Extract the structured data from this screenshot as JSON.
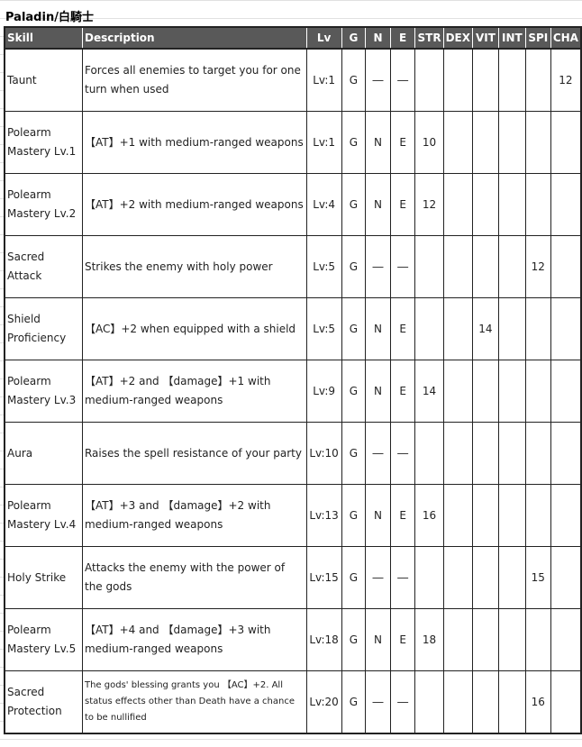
{
  "title": "Paladin/白騎士",
  "columns": [
    "Skill",
    "Description",
    "Lv",
    "G",
    "N",
    "E",
    "STR",
    "DEX",
    "VIT",
    "INT",
    "SPI",
    "CHA"
  ],
  "rows": [
    {
      "skill": "Taunt",
      "desc": "Forces all enemies to target you for one turn when used",
      "lv": "Lv:1",
      "g": "G",
      "n": "―",
      "e": "―",
      "stats": {
        "CHA": "12"
      }
    },
    {
      "skill": "Polearm Mastery Lv.1",
      "desc": "【AT】+1 with medium-ranged weapons",
      "lv": "Lv:1",
      "g": "G",
      "n": "N",
      "e": "E",
      "stats": {
        "STR": "10"
      }
    },
    {
      "skill": "Polearm Mastery Lv.2",
      "desc": "【AT】+2 with medium-ranged weapons",
      "lv": "Lv:4",
      "g": "G",
      "n": "N",
      "e": "E",
      "stats": {
        "STR": "12"
      }
    },
    {
      "skill": "Sacred Attack",
      "desc": "Strikes the enemy with holy power",
      "lv": "Lv:5",
      "g": "G",
      "n": "―",
      "e": "―",
      "stats": {
        "SPI": "12"
      }
    },
    {
      "skill": "Shield Proficiency",
      "desc": "【AC】+2 when equipped with a shield",
      "lv": "Lv:5",
      "g": "G",
      "n": "N",
      "e": "E",
      "stats": {
        "VIT": "14"
      }
    },
    {
      "skill": "Polearm Mastery Lv.3",
      "desc": "【AT】+2 and 【damage】+1 with medium-ranged weapons",
      "lv": "Lv:9",
      "g": "G",
      "n": "N",
      "e": "E",
      "stats": {
        "STR": "14"
      }
    },
    {
      "skill": "Aura",
      "desc": "Raises the spell resistance of your party",
      "lv": "Lv:10",
      "g": "G",
      "n": "―",
      "e": "―",
      "stats": {}
    },
    {
      "skill": "Polearm Mastery Lv.4",
      "desc": "【AT】+3 and 【damage】+2 with medium-ranged weapons",
      "lv": "Lv:13",
      "g": "G",
      "n": "N",
      "e": "E",
      "stats": {
        "STR": "16"
      }
    },
    {
      "skill": "Holy Strike",
      "desc": "Attacks the enemy with the power of the gods",
      "lv": "Lv:15",
      "g": "G",
      "n": "―",
      "e": "―",
      "stats": {
        "SPI": "15"
      }
    },
    {
      "skill": "Polearm Mastery Lv.5",
      "desc": "【AT】+4 and 【damage】+3 with medium-ranged weapons",
      "lv": "Lv:18",
      "g": "G",
      "n": "N",
      "e": "E",
      "stats": {
        "STR": "18"
      }
    },
    {
      "skill": "Sacred Protection",
      "desc": "The gods' blessing grants you 【AC】+2. All status effects other than Death have a chance to be nullified",
      "lv": "Lv:20",
      "g": "G",
      "n": "―",
      "e": "―",
      "stats": {
        "SPI": "16"
      },
      "small": true
    }
  ]
}
